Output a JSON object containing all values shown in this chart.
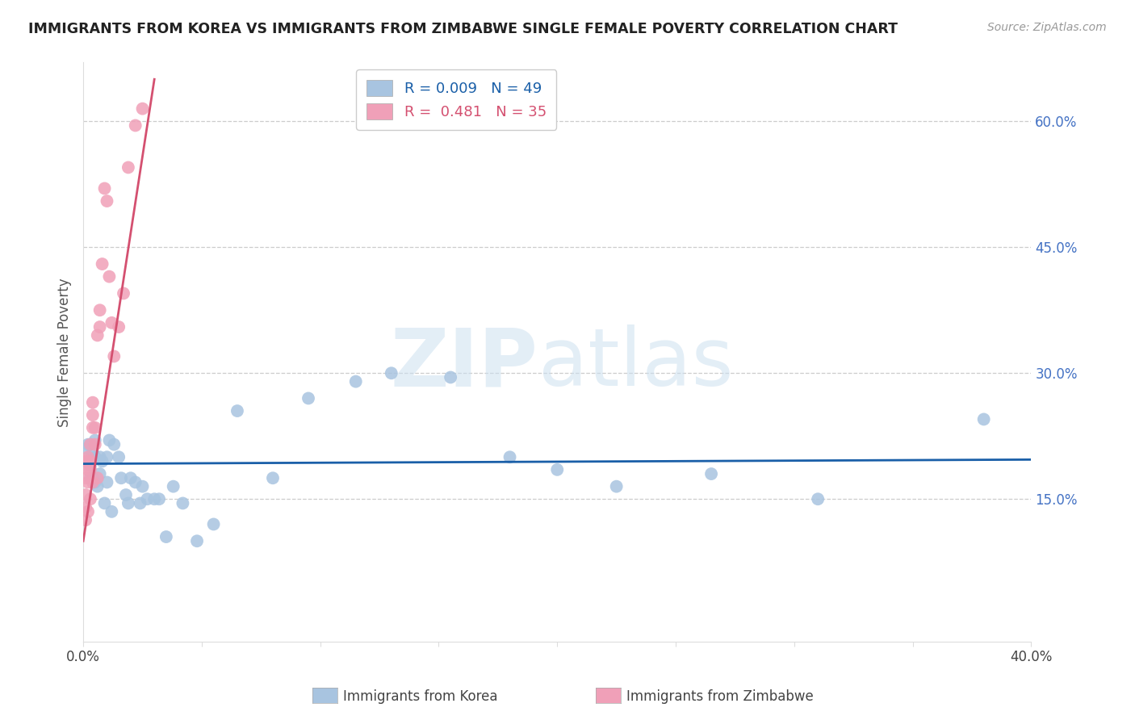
{
  "title": "IMMIGRANTS FROM KOREA VS IMMIGRANTS FROM ZIMBABWE SINGLE FEMALE POVERTY CORRELATION CHART",
  "source": "Source: ZipAtlas.com",
  "ylabel": "Single Female Poverty",
  "xlim": [
    0.0,
    0.4
  ],
  "ylim": [
    -0.02,
    0.67
  ],
  "yticks_right": [
    0.15,
    0.3,
    0.45,
    0.6
  ],
  "ytick_labels_right": [
    "15.0%",
    "30.0%",
    "45.0%",
    "60.0%"
  ],
  "korea_color": "#a8c4e0",
  "zimbabwe_color": "#f0a0b8",
  "korea_line_color": "#1a5fa8",
  "zimbabwe_line_color": "#d45070",
  "legend_korea_label": "R = 0.009   N = 49",
  "legend_zimbabwe_label": "R =  0.481   N = 35",
  "korea_x": [
    0.001,
    0.002,
    0.002,
    0.003,
    0.003,
    0.003,
    0.004,
    0.004,
    0.005,
    0.005,
    0.005,
    0.006,
    0.007,
    0.007,
    0.008,
    0.009,
    0.01,
    0.01,
    0.011,
    0.012,
    0.013,
    0.015,
    0.016,
    0.018,
    0.019,
    0.02,
    0.022,
    0.024,
    0.025,
    0.027,
    0.03,
    0.032,
    0.035,
    0.038,
    0.042,
    0.048,
    0.055,
    0.065,
    0.08,
    0.095,
    0.115,
    0.13,
    0.155,
    0.18,
    0.2,
    0.225,
    0.265,
    0.31,
    0.38
  ],
  "korea_y": [
    0.21,
    0.195,
    0.215,
    0.175,
    0.19,
    0.215,
    0.175,
    0.205,
    0.2,
    0.22,
    0.17,
    0.165,
    0.18,
    0.2,
    0.195,
    0.145,
    0.17,
    0.2,
    0.22,
    0.135,
    0.215,
    0.2,
    0.175,
    0.155,
    0.145,
    0.175,
    0.17,
    0.145,
    0.165,
    0.15,
    0.15,
    0.15,
    0.105,
    0.165,
    0.145,
    0.1,
    0.12,
    0.255,
    0.175,
    0.27,
    0.29,
    0.3,
    0.295,
    0.2,
    0.185,
    0.165,
    0.18,
    0.15,
    0.245
  ],
  "zimbabwe_x": [
    0.001,
    0.001,
    0.001,
    0.001,
    0.001,
    0.002,
    0.002,
    0.002,
    0.002,
    0.002,
    0.003,
    0.003,
    0.003,
    0.003,
    0.004,
    0.004,
    0.004,
    0.004,
    0.005,
    0.005,
    0.006,
    0.006,
    0.007,
    0.007,
    0.008,
    0.009,
    0.01,
    0.011,
    0.012,
    0.013,
    0.015,
    0.017,
    0.019,
    0.022,
    0.025
  ],
  "zimbabwe_y": [
    0.195,
    0.175,
    0.155,
    0.14,
    0.125,
    0.2,
    0.195,
    0.185,
    0.17,
    0.135,
    0.215,
    0.195,
    0.185,
    0.15,
    0.265,
    0.25,
    0.235,
    0.17,
    0.235,
    0.215,
    0.345,
    0.175,
    0.375,
    0.355,
    0.43,
    0.52,
    0.505,
    0.415,
    0.36,
    0.32,
    0.355,
    0.395,
    0.545,
    0.595,
    0.615
  ],
  "korea_trend_x": [
    0.0,
    0.4
  ],
  "korea_trend_y": [
    0.192,
    0.197
  ],
  "zimbabwe_trend_x": [
    0.0,
    0.03
  ],
  "zimbabwe_trend_y": [
    0.1,
    0.65
  ]
}
